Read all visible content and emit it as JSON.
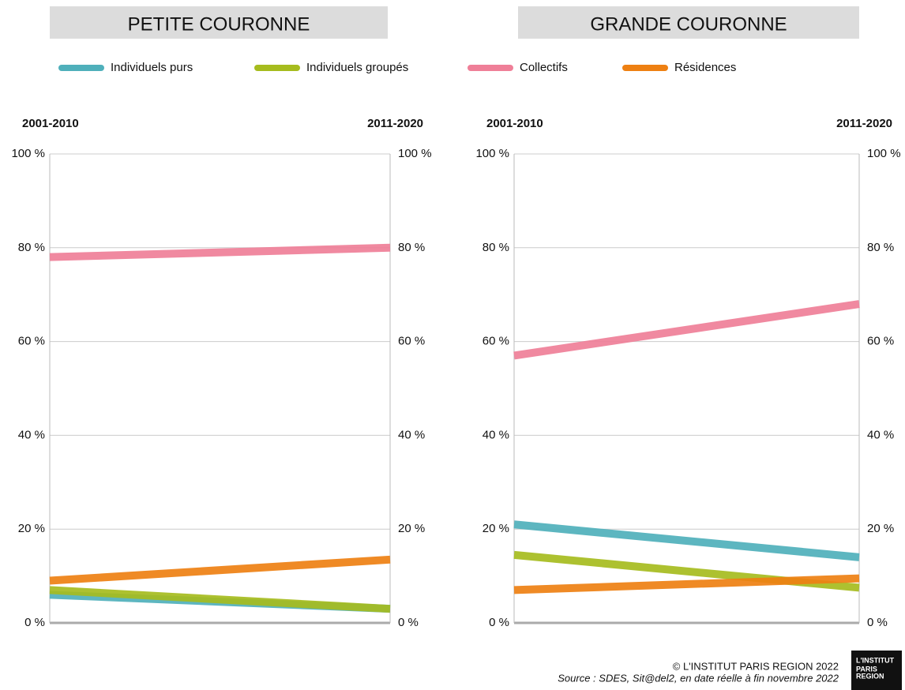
{
  "legend": [
    {
      "name": "Individuels purs",
      "color": "#4fb0bb"
    },
    {
      "name": "Individuels groupés",
      "color": "#a6bc1e"
    },
    {
      "name": "Collectifs",
      "color": "#ef7f98"
    },
    {
      "name": "Résidences",
      "color": "#ee8012"
    }
  ],
  "chart_data": [
    {
      "type": "slope",
      "title": "PETITE COURONNE",
      "categories": [
        "2001-2010",
        "2011-2020"
      ],
      "ylim": [
        0,
        100
      ],
      "yticks": [
        {
          "value": 0,
          "label": "0 %"
        },
        {
          "value": 20,
          "label": "20 %"
        },
        {
          "value": 40,
          "label": "40 %"
        },
        {
          "value": 60,
          "label": "60 %"
        },
        {
          "value": 80,
          "label": "80 %"
        },
        {
          "value": 100,
          "label": "100 %"
        }
      ],
      "grid": true,
      "series": [
        {
          "color": "#4fb0bb",
          "values": [
            6,
            3
          ]
        },
        {
          "color": "#a6bc1e",
          "values": [
            7,
            3
          ]
        },
        {
          "color": "#ef7f98",
          "values": [
            78,
            80
          ]
        },
        {
          "color": "#ee8012",
          "values": [
            9,
            13.5
          ]
        }
      ]
    },
    {
      "type": "slope",
      "title": "GRANDE COURONNE",
      "categories": [
        "2001-2010",
        "2011-2020"
      ],
      "ylim": [
        0,
        100
      ],
      "yticks": [
        {
          "value": 0,
          "label": "0 %"
        },
        {
          "value": 20,
          "label": "20 %"
        },
        {
          "value": 40,
          "label": "40 %"
        },
        {
          "value": 60,
          "label": "60 %"
        },
        {
          "value": 80,
          "label": "80 %"
        },
        {
          "value": 100,
          "label": "100 %"
        }
      ],
      "grid": true,
      "series": [
        {
          "color": "#4fb0bb",
          "values": [
            21,
            14
          ]
        },
        {
          "color": "#a6bc1e",
          "values": [
            14.5,
            7.5
          ]
        },
        {
          "color": "#ef7f98",
          "values": [
            57,
            68
          ]
        },
        {
          "color": "#ee8012",
          "values": [
            7,
            9.5
          ]
        }
      ]
    }
  ],
  "footer": {
    "copyright": "© L'INSTITUT PARIS REGION 2022",
    "source": "Source : SDES, Sit@del2, en date réelle à fin novembre 2022",
    "logo": [
      "L'INSTITUT",
      "PARIS",
      "REGION"
    ]
  }
}
